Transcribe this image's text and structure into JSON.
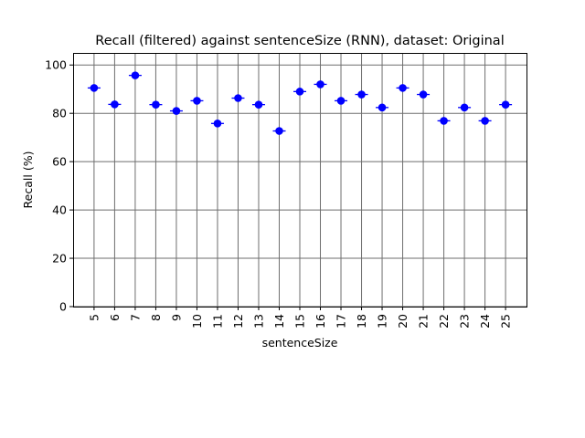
{
  "chart_data": {
    "type": "scatter",
    "title": "Recall (filtered) against sentenceSize (RNN), dataset: Original",
    "xlabel": "sentenceSize",
    "ylabel": "Recall (%)",
    "ylim": [
      0,
      105
    ],
    "yticks": [
      0,
      20,
      40,
      60,
      80,
      100
    ],
    "grid": true,
    "marker_color": "#0000ff",
    "categories": [
      "5",
      "6",
      "7",
      "8",
      "9",
      "10",
      "11",
      "12",
      "13",
      "14",
      "15",
      "16",
      "17",
      "18",
      "19",
      "20",
      "21",
      "22",
      "23",
      "24",
      "25"
    ],
    "values": [
      90.5,
      83.7,
      95.7,
      83.6,
      81.0,
      85.2,
      75.8,
      86.3,
      83.6,
      72.7,
      89.0,
      92.0,
      85.2,
      87.8,
      82.4,
      90.5,
      87.8,
      76.9,
      82.4,
      76.9,
      83.6
    ]
  }
}
